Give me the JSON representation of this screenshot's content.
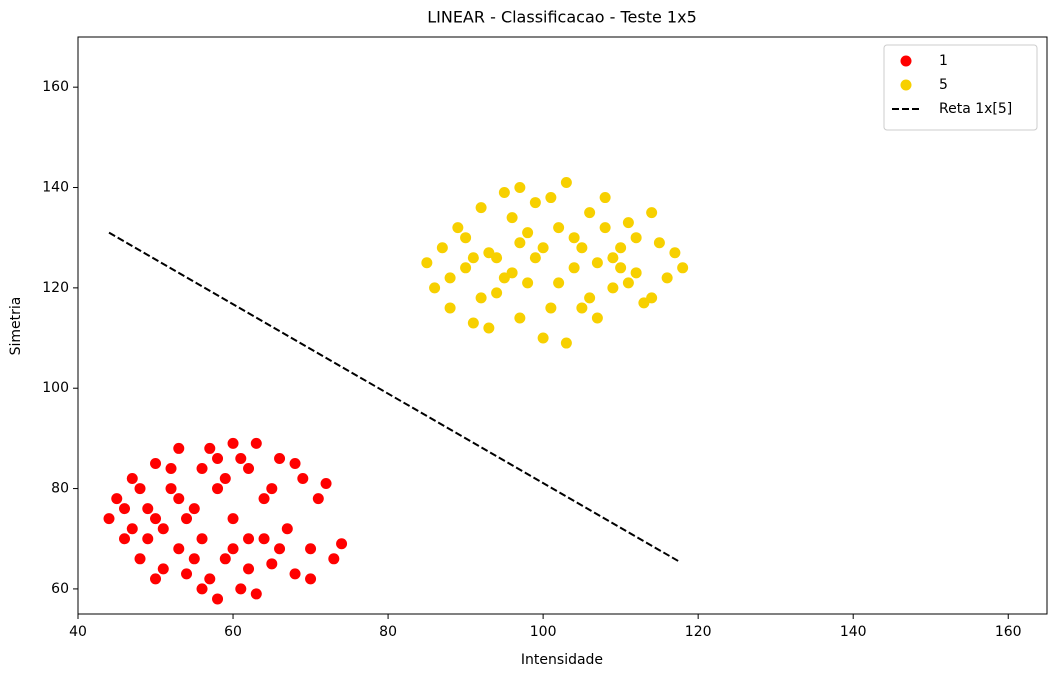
{
  "chart_data": {
    "type": "scatter",
    "title": "LINEAR - Classificacao - Teste 1x5",
    "x_label": "Intensidade",
    "y_label": "Simetria",
    "xlim": [
      40,
      165
    ],
    "ylim": [
      55,
      170
    ],
    "xticks": [
      40,
      60,
      80,
      100,
      120,
      140,
      160
    ],
    "yticks": [
      60,
      80,
      100,
      120,
      140,
      160
    ],
    "legend": "upper right",
    "series": [
      {
        "name": "1",
        "type": "scatter",
        "color": "#ff0000",
        "x": [
          44,
          45,
          46,
          47,
          48,
          49,
          50,
          50,
          51,
          52,
          53,
          53,
          54,
          55,
          56,
          56,
          57,
          58,
          58,
          59,
          60,
          60,
          61,
          62,
          62,
          63,
          63,
          64,
          65,
          66,
          67,
          68,
          69,
          70,
          71,
          72,
          73,
          74,
          46,
          48,
          49,
          51,
          52,
          54,
          55,
          57,
          59,
          61,
          64,
          66,
          68,
          70,
          47,
          53,
          56,
          60,
          62,
          65,
          50,
          58
        ],
        "y": [
          74,
          78,
          70,
          82,
          66,
          76,
          85,
          62,
          72,
          80,
          68,
          88,
          63,
          76,
          84,
          70,
          88,
          58,
          80,
          66,
          89,
          74,
          60,
          84,
          70,
          89,
          59,
          78,
          65,
          86,
          72,
          63,
          82,
          68,
          78,
          81,
          66,
          69,
          76,
          80,
          70,
          64,
          84,
          74,
          66,
          62,
          82,
          86,
          70,
          68,
          85,
          62,
          72,
          78,
          60,
          68,
          64,
          80,
          74,
          86
        ]
      },
      {
        "name": "5",
        "type": "scatter",
        "color": "#f7d000",
        "x": [
          85,
          86,
          87,
          88,
          89,
          90,
          91,
          92,
          93,
          94,
          95,
          96,
          97,
          98,
          99,
          100,
          101,
          102,
          103,
          103,
          104,
          105,
          106,
          107,
          108,
          109,
          110,
          111,
          112,
          113,
          114,
          115,
          116,
          117,
          118,
          88,
          90,
          92,
          94,
          96,
          98,
          100,
          101,
          104,
          106,
          108,
          110,
          112,
          114,
          91,
          95,
          97,
          99,
          102,
          105,
          107,
          109,
          111,
          93,
          97
        ],
        "y": [
          125,
          120,
          128,
          116,
          132,
          124,
          113,
          136,
          127,
          119,
          139,
          123,
          114,
          131,
          126,
          110,
          138,
          121,
          141,
          109,
          130,
          116,
          135,
          125,
          138,
          120,
          128,
          133,
          123,
          117,
          135,
          129,
          122,
          127,
          124,
          122,
          130,
          118,
          126,
          134,
          121,
          128,
          116,
          124,
          118,
          132,
          124,
          130,
          118,
          126,
          122,
          129,
          137,
          132,
          128,
          114,
          126,
          121,
          112,
          140
        ]
      },
      {
        "name": "Reta 1x[5]",
        "type": "line",
        "color": "#000000",
        "dash": "dashed",
        "x": [
          44,
          117.5
        ],
        "y": [
          131,
          65.5
        ]
      }
    ]
  }
}
